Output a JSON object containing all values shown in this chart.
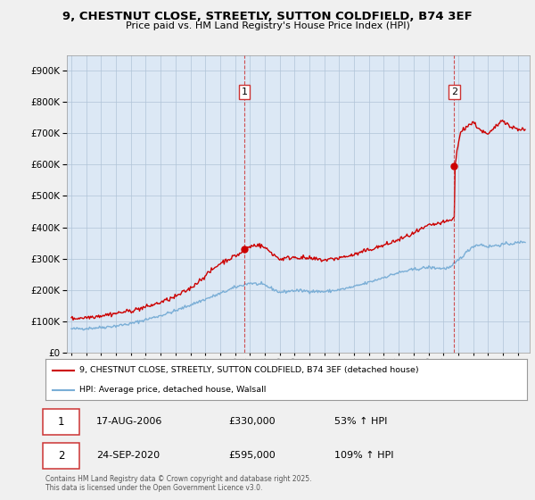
{
  "title1": "9, CHESTNUT CLOSE, STREETLY, SUTTON COLDFIELD, B74 3EF",
  "title2": "Price paid vs. HM Land Registry's House Price Index (HPI)",
  "legend_line1": "9, CHESTNUT CLOSE, STREETLY, SUTTON COLDFIELD, B74 3EF (detached house)",
  "legend_line2": "HPI: Average price, detached house, Walsall",
  "annotation1_date": "17-AUG-2006",
  "annotation1_price": "£330,000",
  "annotation1_hpi": "53% ↑ HPI",
  "annotation2_date": "24-SEP-2020",
  "annotation2_price": "£595,000",
  "annotation2_hpi": "109% ↑ HPI",
  "footer1": "Contains HM Land Registry data © Crown copyright and database right 2025.",
  "footer2": "This data is licensed under the Open Government Licence v3.0.",
  "red_color": "#cc0000",
  "blue_color": "#7aaed6",
  "fig_bg_color": "#f0f0f0",
  "plot_bg_color": "#dce8f5",
  "grid_color": "#b0c4d8",
  "vline_color": "#cc3333",
  "ylim": [
    0,
    950000
  ],
  "xlim_start": 1994.7,
  "xlim_end": 2025.8,
  "sale1_x": 2006.625,
  "sale1_y": 330000,
  "sale2_x": 2020.73,
  "sale2_y": 595000
}
